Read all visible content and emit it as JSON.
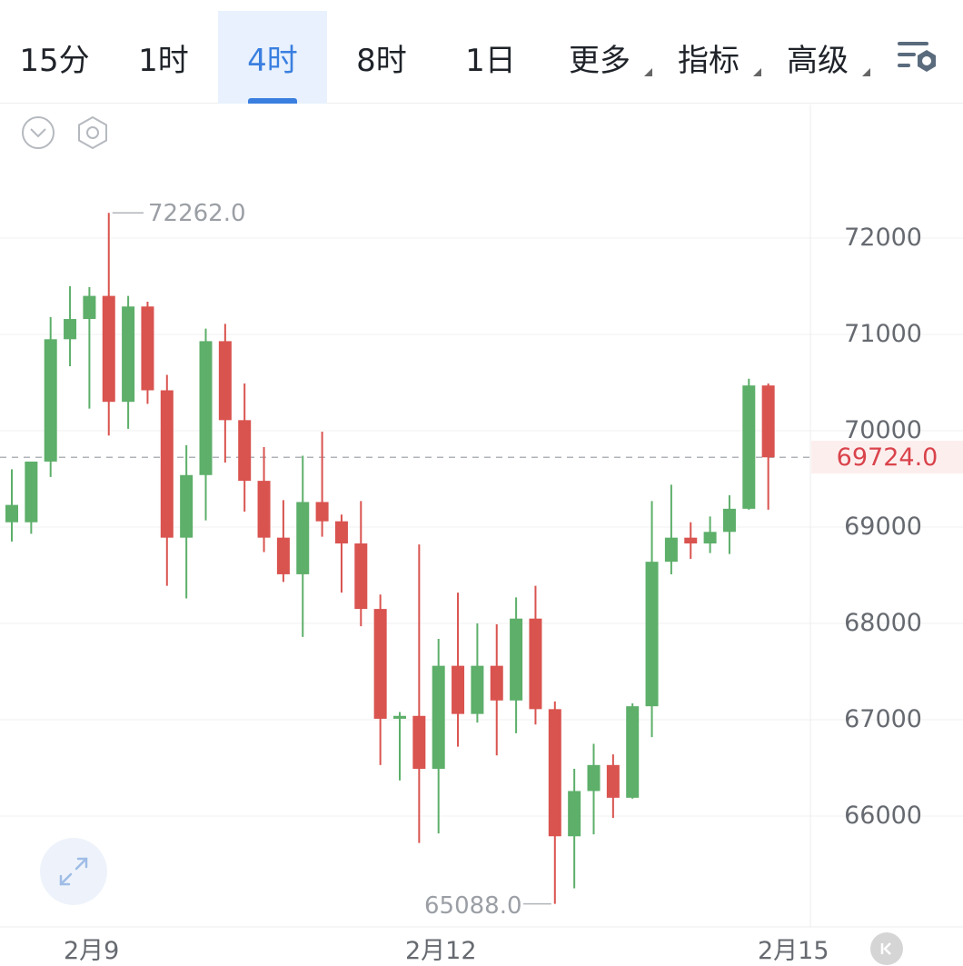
{
  "toolbar": {
    "tabs": [
      {
        "label": "15分"
      },
      {
        "label": "1时"
      },
      {
        "label": "4时",
        "active": true
      },
      {
        "label": "8时"
      },
      {
        "label": "1日"
      },
      {
        "label": "更多",
        "has_dropdown": true
      },
      {
        "label": "指标",
        "has_dropdown": true
      },
      {
        "label": "高级",
        "has_dropdown": true
      }
    ],
    "settings_icon": "list-settings-icon"
  },
  "chart_controls": {
    "collapse_icon": "chevron-down-circle-icon",
    "settings_icon": "hexagon-settings-icon",
    "fullscreen_icon": "expand-arrows-icon",
    "back_icon": "scroll-to-latest-icon"
  },
  "colors": {
    "up": "#5daf6a",
    "down": "#d9534f",
    "accent": "#3a7fe0",
    "last_price": "#d9434b"
  },
  "chart_data": {
    "type": "candlestick",
    "timeframe": "4时",
    "y_ticks": [
      "72000",
      "71000",
      "70000",
      "69000",
      "68000",
      "67000",
      "66000"
    ],
    "x_ticks": [
      "2月9",
      "2月12",
      "2月15"
    ],
    "last_price": "69724.0",
    "high_label": "72262.0",
    "low_label": "65088.0",
    "ylim": [
      64900,
      73400
    ],
    "candles": [
      {
        "o": 69050,
        "h": 69600,
        "l": 68850,
        "c": 69230
      },
      {
        "o": 69050,
        "h": 69650,
        "l": 68930,
        "c": 69680
      },
      {
        "o": 69680,
        "h": 71180,
        "l": 69520,
        "c": 70950
      },
      {
        "o": 70950,
        "h": 71500,
        "l": 70670,
        "c": 71160
      },
      {
        "o": 71160,
        "h": 71490,
        "l": 70230,
        "c": 71400
      },
      {
        "o": 71400,
        "h": 72262,
        "l": 69950,
        "c": 70300
      },
      {
        "o": 70300,
        "h": 71400,
        "l": 70020,
        "c": 71290
      },
      {
        "o": 71290,
        "h": 71340,
        "l": 70280,
        "c": 70420
      },
      {
        "o": 70420,
        "h": 70580,
        "l": 68390,
        "c": 68890
      },
      {
        "o": 68890,
        "h": 69850,
        "l": 68260,
        "c": 69540
      },
      {
        "o": 69540,
        "h": 71060,
        "l": 69070,
        "c": 70930
      },
      {
        "o": 70930,
        "h": 71110,
        "l": 69670,
        "c": 70110
      },
      {
        "o": 70110,
        "h": 70490,
        "l": 69160,
        "c": 69480
      },
      {
        "o": 69480,
        "h": 69830,
        "l": 68740,
        "c": 68890
      },
      {
        "o": 68890,
        "h": 69280,
        "l": 68430,
        "c": 68510
      },
      {
        "o": 68510,
        "h": 69740,
        "l": 67860,
        "c": 69260
      },
      {
        "o": 69260,
        "h": 69990,
        "l": 68900,
        "c": 69060
      },
      {
        "o": 69060,
        "h": 69130,
        "l": 68320,
        "c": 68830
      },
      {
        "o": 68830,
        "h": 69270,
        "l": 67970,
        "c": 68150
      },
      {
        "o": 68150,
        "h": 68300,
        "l": 66530,
        "c": 67010
      },
      {
        "o": 67010,
        "h": 67080,
        "l": 66370,
        "c": 67040
      },
      {
        "o": 67040,
        "h": 68820,
        "l": 65720,
        "c": 66490
      },
      {
        "o": 66490,
        "h": 67840,
        "l": 65820,
        "c": 67560
      },
      {
        "o": 67560,
        "h": 68320,
        "l": 66720,
        "c": 67060
      },
      {
        "o": 67060,
        "h": 68000,
        "l": 66970,
        "c": 67560
      },
      {
        "o": 67560,
        "h": 67990,
        "l": 66630,
        "c": 67200
      },
      {
        "o": 67200,
        "h": 68270,
        "l": 66860,
        "c": 68050
      },
      {
        "o": 68050,
        "h": 68390,
        "l": 66950,
        "c": 67110
      },
      {
        "o": 67110,
        "h": 67190,
        "l": 65088,
        "c": 65790
      },
      {
        "o": 65790,
        "h": 66490,
        "l": 65250,
        "c": 66260
      },
      {
        "o": 66260,
        "h": 66750,
        "l": 65810,
        "c": 66530
      },
      {
        "o": 66530,
        "h": 66640,
        "l": 65980,
        "c": 66190
      },
      {
        "o": 66190,
        "h": 67170,
        "l": 66180,
        "c": 67140
      },
      {
        "o": 67140,
        "h": 69270,
        "l": 66820,
        "c": 68640
      },
      {
        "o": 68640,
        "h": 69440,
        "l": 68510,
        "c": 68890
      },
      {
        "o": 68890,
        "h": 69050,
        "l": 68670,
        "c": 68830
      },
      {
        "o": 68830,
        "h": 69110,
        "l": 68730,
        "c": 68950
      },
      {
        "o": 68950,
        "h": 69330,
        "l": 68720,
        "c": 69190
      },
      {
        "o": 69190,
        "h": 70540,
        "l": 69180,
        "c": 70470
      },
      {
        "o": 70470,
        "h": 70490,
        "l": 69180,
        "c": 69724
      }
    ]
  }
}
